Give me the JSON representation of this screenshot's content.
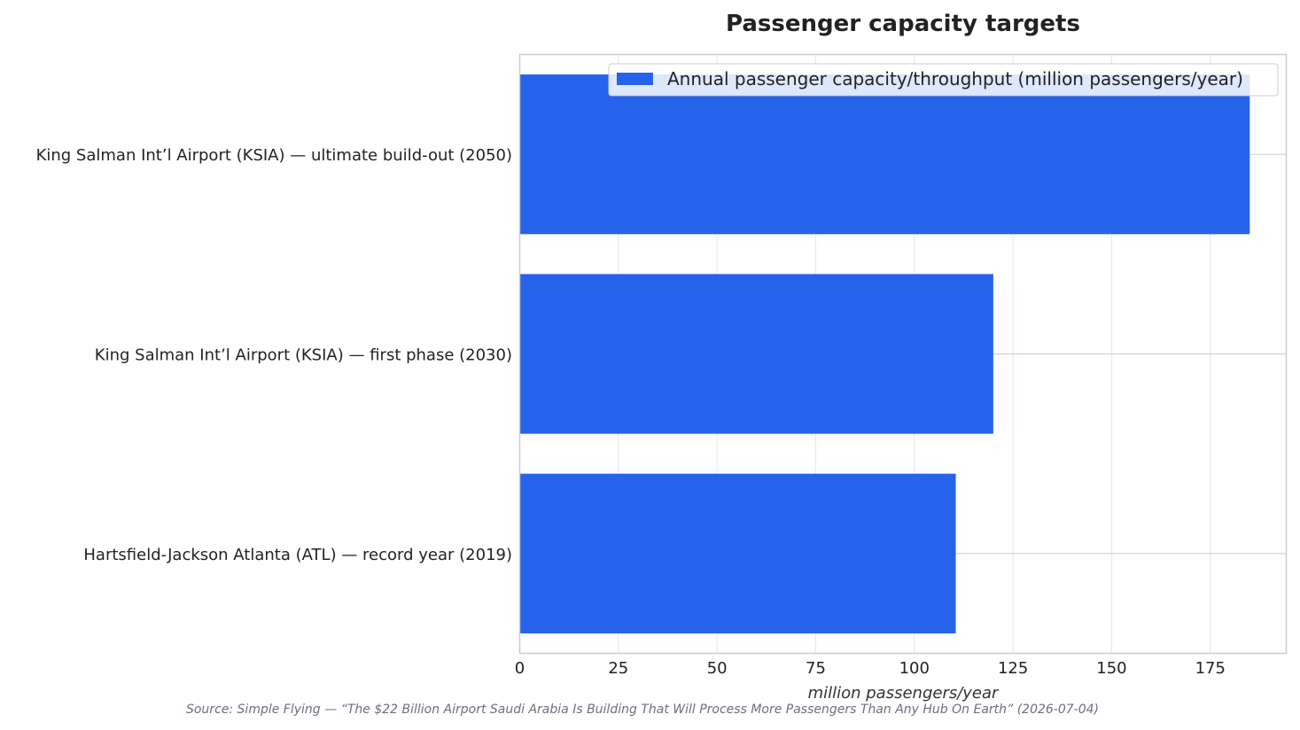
{
  "chart_data": {
    "type": "bar",
    "orientation": "horizontal",
    "title": "Passenger capacity targets",
    "xlabel": "million passengers/year",
    "ylabel": "",
    "categories": [
      "King Salman Int’l Airport (KSIA) — ultimate build-out (2050)",
      "King Salman Int’l Airport (KSIA) — first phase (2030)",
      "Hartsfield-Jackson Atlanta (ATL) — record year (2019)"
    ],
    "series": [
      {
        "name": "Annual passenger capacity/throughput (million passengers/year)",
        "values": [
          185,
          120,
          110.5
        ],
        "color": "#2563eb"
      }
    ],
    "xlim": [
      0,
      194.25
    ],
    "xticks": [
      0,
      25,
      50,
      75,
      100,
      125,
      150,
      175
    ],
    "grid": true,
    "legend_position": "top-right"
  },
  "source": "Source: Simple Flying — “The $22 Billion Airport Saudi Arabia Is Building That Will Process More Passengers Than Any Hub On Earth” (2026-07-04)"
}
